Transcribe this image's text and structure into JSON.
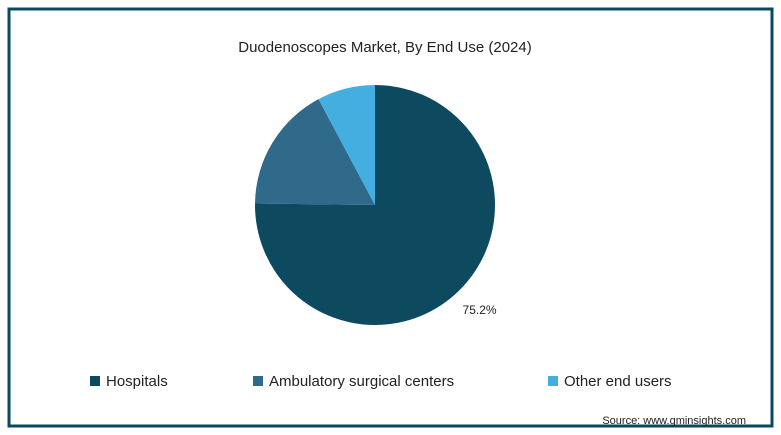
{
  "chart_data": {
    "type": "pie",
    "title": "Duodenoscopes Market, By End Use (2024)",
    "categories": [
      "Hospitals",
      "Ambulatory surgical centers",
      "Other end users"
    ],
    "values": [
      75.2,
      17.0,
      7.8
    ],
    "value_labels": [
      "75.2%",
      null,
      null
    ],
    "colors": [
      "#0d4a60",
      "#2f6a8a",
      "#44aee0"
    ],
    "source": "Source: www.gminsights.com"
  }
}
